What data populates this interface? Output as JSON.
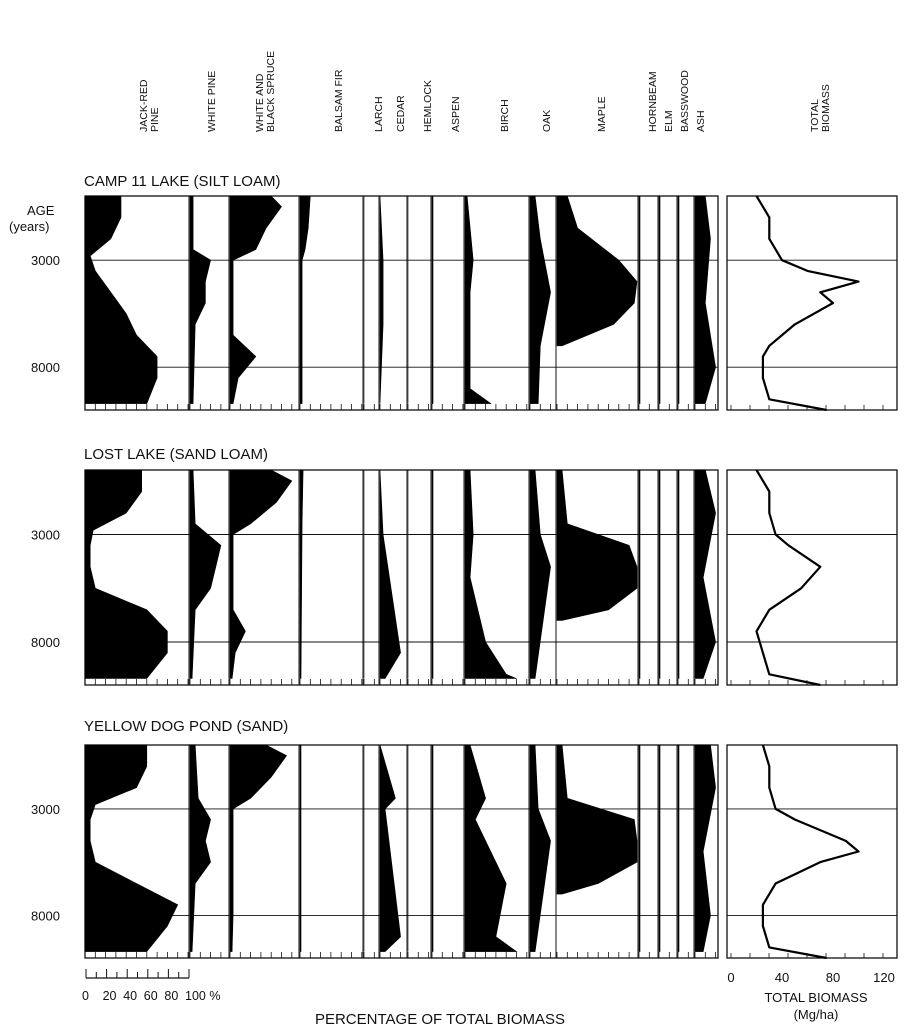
{
  "chart_data": {
    "type": "area",
    "taxa": [
      {
        "label": "JACK-RED PINE"
      },
      {
        "label": "WHITE PINE"
      },
      {
        "label": "WHITE AND BLACK SPRUCE"
      },
      {
        "label": "BALSAM FIR"
      },
      {
        "label": "LARCH"
      },
      {
        "label": "CEDAR"
      },
      {
        "label": "HEMLOCK"
      },
      {
        "label": "ASPEN"
      },
      {
        "label": "BIRCH"
      },
      {
        "label": "OAK"
      },
      {
        "label": "MAPLE"
      },
      {
        "label": "HORNBEAM"
      },
      {
        "label": "ELM"
      },
      {
        "label": "BASSWOOD"
      },
      {
        "label": "ASH"
      }
    ],
    "total_label": "TOTAL BIOMASS",
    "age_axis": {
      "label": "AGE",
      "unit": "(years)",
      "ticks": [
        3000,
        8000
      ],
      "range": [
        0,
        10000
      ]
    },
    "pct_axis": {
      "ticks": [
        "0",
        "20",
        "40",
        "60",
        "80",
        "100 %"
      ]
    },
    "pct_title": "PERCENTAGE OF TOTAL BIOMASS",
    "biomass_axis": {
      "ticks": [
        "0",
        "40",
        "80",
        "120"
      ],
      "range": [
        0,
        120
      ]
    },
    "biomass_title": "TOTAL BIOMASS",
    "biomass_unit": "(Mg/ha)",
    "sites": [
      {
        "name": "CAMP 11 LAKE (SILT LOAM)",
        "series": [
          {
            "taxon": "JACK-RED PINE",
            "age": [
              0,
              1000,
              2000,
              2800,
              3500,
              4500,
              5500,
              6500,
              7500,
              8500,
              9700
            ],
            "pct": [
              35,
              35,
              25,
              5,
              10,
              25,
              40,
              50,
              70,
              70,
              60
            ]
          },
          {
            "taxon": "WHITE PINE",
            "age": [
              0,
              2500,
              3000,
              4000,
              5000,
              6000,
              9700
            ],
            "pct": [
              3,
              3,
              20,
              15,
              15,
              5,
              3
            ]
          },
          {
            "taxon": "WHITE AND BLACK SPRUCE",
            "age": [
              0,
              500,
              1500,
              2500,
              3000,
              6500,
              7500,
              8500,
              9700
            ],
            "pct": [
              40,
              50,
              35,
              25,
              3,
              3,
              25,
              8,
              3
            ]
          },
          {
            "taxon": "BALSAM FIR",
            "age": [
              0,
              1500,
              2500,
              3000,
              9700
            ],
            "pct": [
              10,
              8,
              5,
              2,
              2
            ]
          },
          {
            "taxon": "LARCH",
            "age": [
              0,
              9700
            ],
            "pct": [
              0,
              0
            ]
          },
          {
            "taxon": "CEDAR",
            "age": [
              0,
              3000,
              6000,
              9700
            ],
            "pct": [
              0,
              3,
              3,
              0
            ]
          },
          {
            "taxon": "HEMLOCK",
            "age": [
              0,
              9700
            ],
            "pct": [
              0,
              0
            ]
          },
          {
            "taxon": "ASPEN",
            "age": [
              0,
              9700
            ],
            "pct": [
              1,
              1
            ]
          },
          {
            "taxon": "BIRCH",
            "age": [
              0,
              3000,
              4500,
              9000,
              9700
            ],
            "pct": [
              2,
              8,
              5,
              5,
              25
            ]
          },
          {
            "taxon": "OAK",
            "age": [
              0,
              2000,
              4500,
              7000,
              9700
            ],
            "pct": [
              5,
              10,
              20,
              10,
              8
            ]
          },
          {
            "taxon": "MAPLE",
            "age": [
              0,
              1500,
              3000,
              4000,
              5000,
              6000,
              7000
            ],
            "pct": [
              10,
              20,
              60,
              80,
              75,
              55,
              5
            ]
          },
          {
            "taxon": "HORNBEAM",
            "age": [
              0,
              9700
            ],
            "pct": [
              1,
              1
            ]
          },
          {
            "taxon": "ELM",
            "age": [
              0,
              9700
            ],
            "pct": [
              1,
              1
            ]
          },
          {
            "taxon": "BASSWOOD",
            "age": [
              0,
              9700
            ],
            "pct": [
              1,
              1
            ]
          },
          {
            "taxon": "ASH",
            "age": [
              0,
              2000,
              5000,
              8000,
              9700
            ],
            "pct": [
              10,
              15,
              10,
              20,
              10
            ]
          }
        ],
        "total": {
          "age": [
            0,
            1000,
            2000,
            3000,
            3500,
            4000,
            4500,
            5000,
            6000,
            7000,
            7500,
            8500,
            9500,
            10000
          ],
          "biomass": [
            20,
            30,
            30,
            40,
            60,
            100,
            70,
            80,
            50,
            30,
            25,
            25,
            30,
            75
          ]
        }
      },
      {
        "name": "LOST LAKE (SAND LOAM)",
        "series": [
          {
            "taxon": "JACK-RED PINE",
            "age": [
              0,
              1000,
              2000,
              2800,
              3500,
              4500,
              5500,
              6500,
              7500,
              8500,
              9700
            ],
            "pct": [
              55,
              55,
              40,
              8,
              5,
              5,
              10,
              60,
              80,
              80,
              60
            ]
          },
          {
            "taxon": "WHITE PINE",
            "age": [
              0,
              2500,
              3500,
              4500,
              5500,
              6500,
              9700
            ],
            "pct": [
              3,
              5,
              30,
              25,
              20,
              5,
              2
            ]
          },
          {
            "taxon": "WHITE AND BLACK SPRUCE",
            "age": [
              0,
              500,
              1500,
              2500,
              3000,
              6500,
              7500,
              8500,
              9700
            ],
            "pct": [
              40,
              60,
              45,
              20,
              3,
              3,
              15,
              5,
              2
            ]
          },
          {
            "taxon": "BALSAM FIR",
            "age": [
              0,
              2500,
              9700
            ],
            "pct": [
              3,
              2,
              1
            ]
          },
          {
            "taxon": "LARCH",
            "age": [
              0,
              9700
            ],
            "pct": [
              0,
              0
            ]
          },
          {
            "taxon": "CEDAR",
            "age": [
              0,
              3000,
              8500,
              9700
            ],
            "pct": [
              0,
              3,
              20,
              5
            ]
          },
          {
            "taxon": "HEMLOCK",
            "age": [
              0,
              9700
            ],
            "pct": [
              0,
              0
            ]
          },
          {
            "taxon": "ASPEN",
            "age": [
              0,
              9700
            ],
            "pct": [
              1,
              1
            ]
          },
          {
            "taxon": "BIRCH",
            "age": [
              0,
              3000,
              5000,
              8000,
              9500,
              9700
            ],
            "pct": [
              5,
              8,
              5,
              20,
              40,
              50
            ]
          },
          {
            "taxon": "OAK",
            "age": [
              0,
              3000,
              4500,
              9700
            ],
            "pct": [
              5,
              10,
              20,
              5
            ]
          },
          {
            "taxon": "MAPLE",
            "age": [
              0,
              2500,
              3500,
              4500,
              5500,
              6500,
              7000
            ],
            "pct": [
              5,
              10,
              70,
              85,
              80,
              50,
              5
            ]
          },
          {
            "taxon": "HORNBEAM",
            "age": [
              0,
              9700
            ],
            "pct": [
              1,
              1
            ]
          },
          {
            "taxon": "ELM",
            "age": [
              0,
              9700
            ],
            "pct": [
              1,
              1
            ]
          },
          {
            "taxon": "BASSWOOD",
            "age": [
              0,
              9700
            ],
            "pct": [
              1,
              1
            ]
          },
          {
            "taxon": "ASH",
            "age": [
              0,
              2000,
              5000,
              8000,
              9700
            ],
            "pct": [
              10,
              20,
              8,
              20,
              8
            ]
          }
        ],
        "total": {
          "age": [
            0,
            1000,
            2000,
            3000,
            3500,
            4500,
            5500,
            6500,
            7500,
            8500,
            9500,
            10000
          ],
          "biomass": [
            20,
            30,
            30,
            35,
            45,
            70,
            55,
            30,
            20,
            25,
            30,
            70
          ]
        }
      },
      {
        "name": "YELLOW DOG POND (SAND)",
        "series": [
          {
            "taxon": "JACK-RED PINE",
            "age": [
              0,
              1000,
              2000,
              2800,
              3500,
              4500,
              5500,
              6500,
              7500,
              8500,
              9700
            ],
            "pct": [
              60,
              60,
              50,
              10,
              5,
              5,
              10,
              50,
              90,
              80,
              60
            ]
          },
          {
            "taxon": "WHITE PINE",
            "age": [
              0,
              2500,
              3500,
              4500,
              5500,
              6500,
              9700
            ],
            "pct": [
              5,
              8,
              20,
              15,
              20,
              5,
              2
            ]
          },
          {
            "taxon": "WHITE AND BLACK SPRUCE",
            "age": [
              0,
              500,
              1500,
              2500,
              3000,
              8000,
              9700
            ],
            "pct": [
              35,
              55,
              40,
              20,
              3,
              3,
              2
            ]
          },
          {
            "taxon": "BALSAM FIR",
            "age": [
              0,
              9700
            ],
            "pct": [
              1,
              1
            ]
          },
          {
            "taxon": "LARCH",
            "age": [
              0,
              9700
            ],
            "pct": [
              0,
              0
            ]
          },
          {
            "taxon": "CEDAR",
            "age": [
              0,
              2500,
              3000,
              9000,
              9700
            ],
            "pct": [
              0,
              15,
              5,
              20,
              5
            ]
          },
          {
            "taxon": "HEMLOCK",
            "age": [
              0,
              9700
            ],
            "pct": [
              0,
              0
            ]
          },
          {
            "taxon": "ASPEN",
            "age": [
              0,
              9700
            ],
            "pct": [
              1,
              1
            ]
          },
          {
            "taxon": "BIRCH",
            "age": [
              0,
              2500,
              3500,
              6500,
              9000,
              9700
            ],
            "pct": [
              5,
              20,
              10,
              40,
              30,
              50
            ]
          },
          {
            "taxon": "OAK",
            "age": [
              0,
              3000,
              4500,
              9700
            ],
            "pct": [
              5,
              8,
              20,
              5
            ]
          },
          {
            "taxon": "MAPLE",
            "age": [
              0,
              2500,
              3500,
              4500,
              5500,
              6500,
              7000
            ],
            "pct": [
              5,
              10,
              75,
              90,
              80,
              40,
              5
            ]
          },
          {
            "taxon": "HORNBEAM",
            "age": [
              0,
              9700
            ],
            "pct": [
              1,
              1
            ]
          },
          {
            "taxon": "ELM",
            "age": [
              0,
              9700
            ],
            "pct": [
              1,
              1
            ]
          },
          {
            "taxon": "BASSWOOD",
            "age": [
              0,
              9700
            ],
            "pct": [
              1,
              1
            ]
          },
          {
            "taxon": "ASH",
            "age": [
              0,
              2000,
              5000,
              8000,
              9700
            ],
            "pct": [
              15,
              20,
              8,
              15,
              8
            ]
          }
        ],
        "total": {
          "age": [
            0,
            1000,
            2000,
            3000,
            3500,
            4500,
            5000,
            5500,
            6500,
            7500,
            8500,
            9500,
            10000
          ],
          "biomass": [
            25,
            30,
            30,
            35,
            50,
            90,
            100,
            70,
            35,
            25,
            25,
            30,
            75
          ]
        }
      }
    ]
  }
}
